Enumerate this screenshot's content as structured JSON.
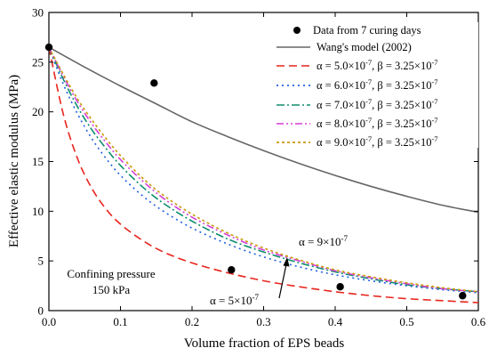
{
  "chart_data": {
    "type": "line",
    "xlabel": "Volume fraction of EPS beads",
    "ylabel": "Effective elastic modulus (MPa)",
    "xlim": [
      0.0,
      0.6
    ],
    "ylim": [
      0,
      30
    ],
    "xticks": [
      0.0,
      0.1,
      0.2,
      0.3,
      0.4,
      0.5,
      0.6
    ],
    "xtick_labels": [
      "0.0",
      "0.1",
      "0.2",
      "0.3",
      "0.4",
      "0.5",
      "0.6"
    ],
    "yticks": [
      0,
      5,
      10,
      15,
      20,
      25,
      30
    ],
    "ytick_labels": [
      "0",
      "5",
      "10",
      "15",
      "20",
      "25",
      "30"
    ],
    "grid": false,
    "legend_position": "top-right",
    "points": {
      "name": "Data from 7 curing days",
      "color": "#000000",
      "x": [
        0.0,
        0.147,
        0.255,
        0.407,
        0.578
      ],
      "y": [
        26.5,
        22.9,
        4.1,
        2.4,
        1.5
      ]
    },
    "curves": [
      {
        "name": "Wang's model (2002)",
        "color": "#666666",
        "dash": "solid",
        "x": [
          0.0,
          0.05,
          0.1,
          0.15,
          0.2,
          0.25,
          0.3,
          0.35,
          0.4,
          0.45,
          0.5,
          0.55,
          0.6
        ],
        "y": [
          26.5,
          24.5,
          22.6,
          20.8,
          19.0,
          17.5,
          16.1,
          14.8,
          13.6,
          12.5,
          11.5,
          10.6,
          9.9
        ]
      },
      {
        "alpha_label": "α = 5.0×10",
        "beta_label": ", β = 3.25×10",
        "exponent": "-7",
        "color": "#e8251d",
        "dash": "9,5",
        "x": [
          0.0,
          0.02,
          0.04,
          0.06,
          0.08,
          0.1,
          0.13,
          0.16,
          0.2,
          0.25,
          0.3,
          0.35,
          0.4,
          0.45,
          0.5,
          0.55,
          0.6
        ],
        "y": [
          26.5,
          19.8,
          15.3,
          12.3,
          10.2,
          8.7,
          7.1,
          5.9,
          4.8,
          3.8,
          3.0,
          2.4,
          1.9,
          1.5,
          1.2,
          1.0,
          0.8
        ]
      },
      {
        "alpha_label": "α = 6.0×10",
        "beta_label": ", β = 3.25×10",
        "exponent": "-7",
        "color": "#1f5fe0",
        "dash": "2,4",
        "x": [
          0.0,
          0.02,
          0.04,
          0.06,
          0.08,
          0.1,
          0.13,
          0.16,
          0.2,
          0.25,
          0.3,
          0.35,
          0.4,
          0.45,
          0.5,
          0.55,
          0.6
        ],
        "y": [
          26.5,
          22.8,
          19.8,
          17.3,
          15.3,
          13.6,
          11.6,
          10.0,
          8.3,
          6.7,
          5.4,
          4.4,
          3.6,
          3.0,
          2.5,
          2.1,
          1.8
        ]
      },
      {
        "alpha_label": "α = 7.0×10",
        "beta_label": ", β = 3.25×10",
        "exponent": "-7",
        "color": "#0e8e6e",
        "dash": "9,3,2,3",
        "x": [
          0.0,
          0.02,
          0.04,
          0.06,
          0.08,
          0.1,
          0.13,
          0.16,
          0.2,
          0.25,
          0.3,
          0.35,
          0.4,
          0.45,
          0.5,
          0.55,
          0.6
        ],
        "y": [
          26.5,
          23.3,
          20.5,
          18.2,
          16.3,
          14.6,
          12.5,
          10.8,
          9.0,
          7.2,
          5.9,
          4.8,
          3.9,
          3.2,
          2.6,
          2.2,
          1.9
        ]
      },
      {
        "alpha_label": "α = 8.0×10",
        "beta_label": ", β = 3.25×10",
        "exponent": "-7",
        "color": "#d63fd6",
        "dash": "8,3,2,3,2,3",
        "x": [
          0.0,
          0.02,
          0.04,
          0.06,
          0.08,
          0.1,
          0.13,
          0.16,
          0.2,
          0.25,
          0.3,
          0.35,
          0.4,
          0.45,
          0.5,
          0.55,
          0.6
        ],
        "y": [
          26.5,
          23.6,
          21.0,
          18.8,
          16.9,
          15.2,
          13.1,
          11.3,
          9.4,
          7.6,
          6.1,
          5.0,
          4.0,
          3.3,
          2.7,
          2.2,
          1.9
        ]
      },
      {
        "alpha_label": "α = 9.0×10",
        "beta_label": ", β = 3.25×10",
        "exponent": "-7",
        "color": "#c99a0a",
        "dash": "3,3",
        "x": [
          0.0,
          0.02,
          0.04,
          0.06,
          0.08,
          0.1,
          0.13,
          0.16,
          0.2,
          0.25,
          0.3,
          0.35,
          0.4,
          0.45,
          0.5,
          0.55,
          0.6
        ],
        "y": [
          26.5,
          23.8,
          21.3,
          19.2,
          17.3,
          15.6,
          13.4,
          11.6,
          9.7,
          7.8,
          6.3,
          5.1,
          4.1,
          3.4,
          2.8,
          2.3,
          1.9
        ]
      }
    ],
    "annotations": {
      "alpha_high": "α = 9×10",
      "alpha_low": "α = 5×10",
      "exponent": "-7",
      "confining_line1": "Confining pressure",
      "confining_line2": "150 kPa"
    }
  }
}
